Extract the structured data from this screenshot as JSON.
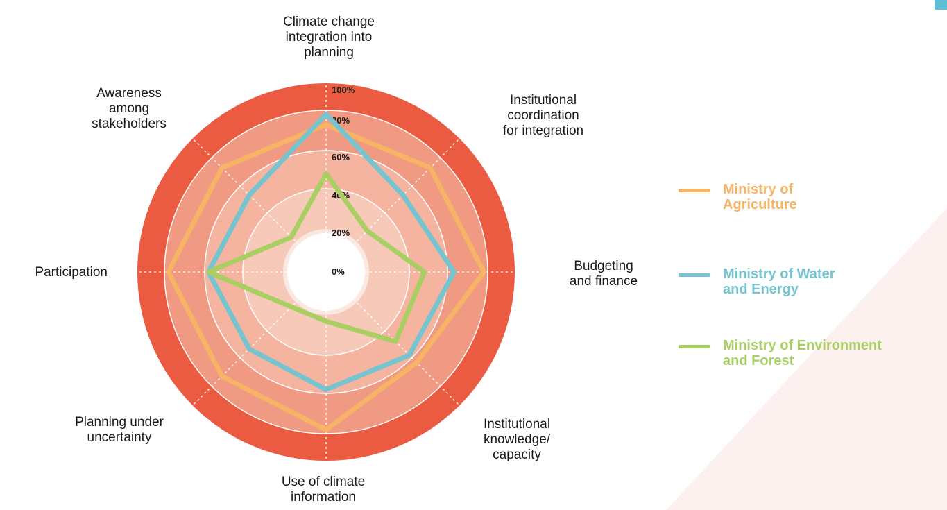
{
  "chart_data": {
    "type": "radar",
    "axes": [
      "Climate change\nintegration into\nplanning",
      "Institutional\ncoordination\nfor integration",
      "Budgeting\nand finance",
      "Institutional\nknowledge/\ncapacity",
      "Use of climate\ninformation",
      "Planning under\nuncertainty",
      "Participation",
      "Awareness\namong\nstakeholders"
    ],
    "tick_labels": [
      "0%",
      "20%",
      "40%",
      "60%",
      "80%",
      "100%"
    ],
    "rlim": [
      0,
      100
    ],
    "series": [
      {
        "name": "Ministry of\nAgriculture",
        "color": "#f7b366",
        "values": [
          73,
          73,
          80,
          60,
          80,
          73,
          80,
          73
        ]
      },
      {
        "name": "Ministry of Water\nand Energy",
        "color": "#75c4cf",
        "values": [
          80,
          47,
          60,
          53,
          53,
          47,
          53,
          47
        ]
      },
      {
        "name": "Ministry of Environment\nand Forest",
        "color": "#a9cf63",
        "values": [
          40,
          13,
          40,
          40,
          7,
          7,
          53,
          7
        ]
      }
    ],
    "legend_position": "right",
    "ring_colors": [
      "#fbe8e1",
      "#f7c9b8",
      "#f4b4a0",
      "#f09a84",
      "#ea5b42"
    ],
    "grid": true
  }
}
